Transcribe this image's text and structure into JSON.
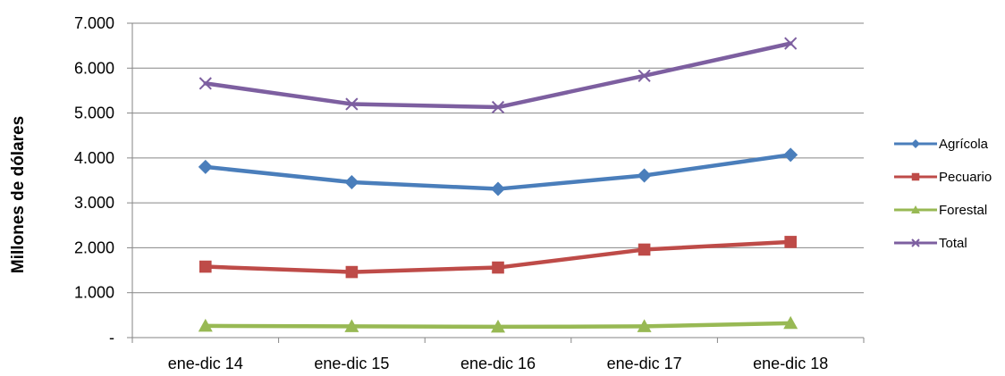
{
  "chart_data": {
    "type": "line",
    "title": "",
    "xlabel": "",
    "ylabel": "Millones de dólares",
    "categories": [
      "ene-dic 14",
      "ene-dic 15",
      "ene-dic 16",
      "ene-dic 17",
      "ene-dic 18"
    ],
    "ylim": [
      0,
      7000
    ],
    "yticks": [
      0,
      1000,
      2000,
      3000,
      4000,
      5000,
      6000,
      7000
    ],
    "ytick_labels": [
      "-",
      "1.000",
      "2.000",
      "3.000",
      "4.000",
      "5.000",
      "6.000",
      "7.000"
    ],
    "grid": "horizontal",
    "legend_position": "right",
    "series": [
      {
        "name": "Agrícola",
        "values": [
          3800,
          3460,
          3310,
          3610,
          4070
        ],
        "color": "#4a7ebb",
        "marker": "diamond"
      },
      {
        "name": "Pecuario",
        "values": [
          1580,
          1460,
          1560,
          1960,
          2130
        ],
        "color": "#be4b48",
        "marker": "square"
      },
      {
        "name": "Forestal",
        "values": [
          260,
          250,
          240,
          250,
          320
        ],
        "color": "#98b954",
        "marker": "triangle"
      },
      {
        "name": "Total",
        "values": [
          5660,
          5200,
          5130,
          5830,
          6550
        ],
        "color": "#7d5fa0",
        "marker": "x"
      }
    ]
  }
}
